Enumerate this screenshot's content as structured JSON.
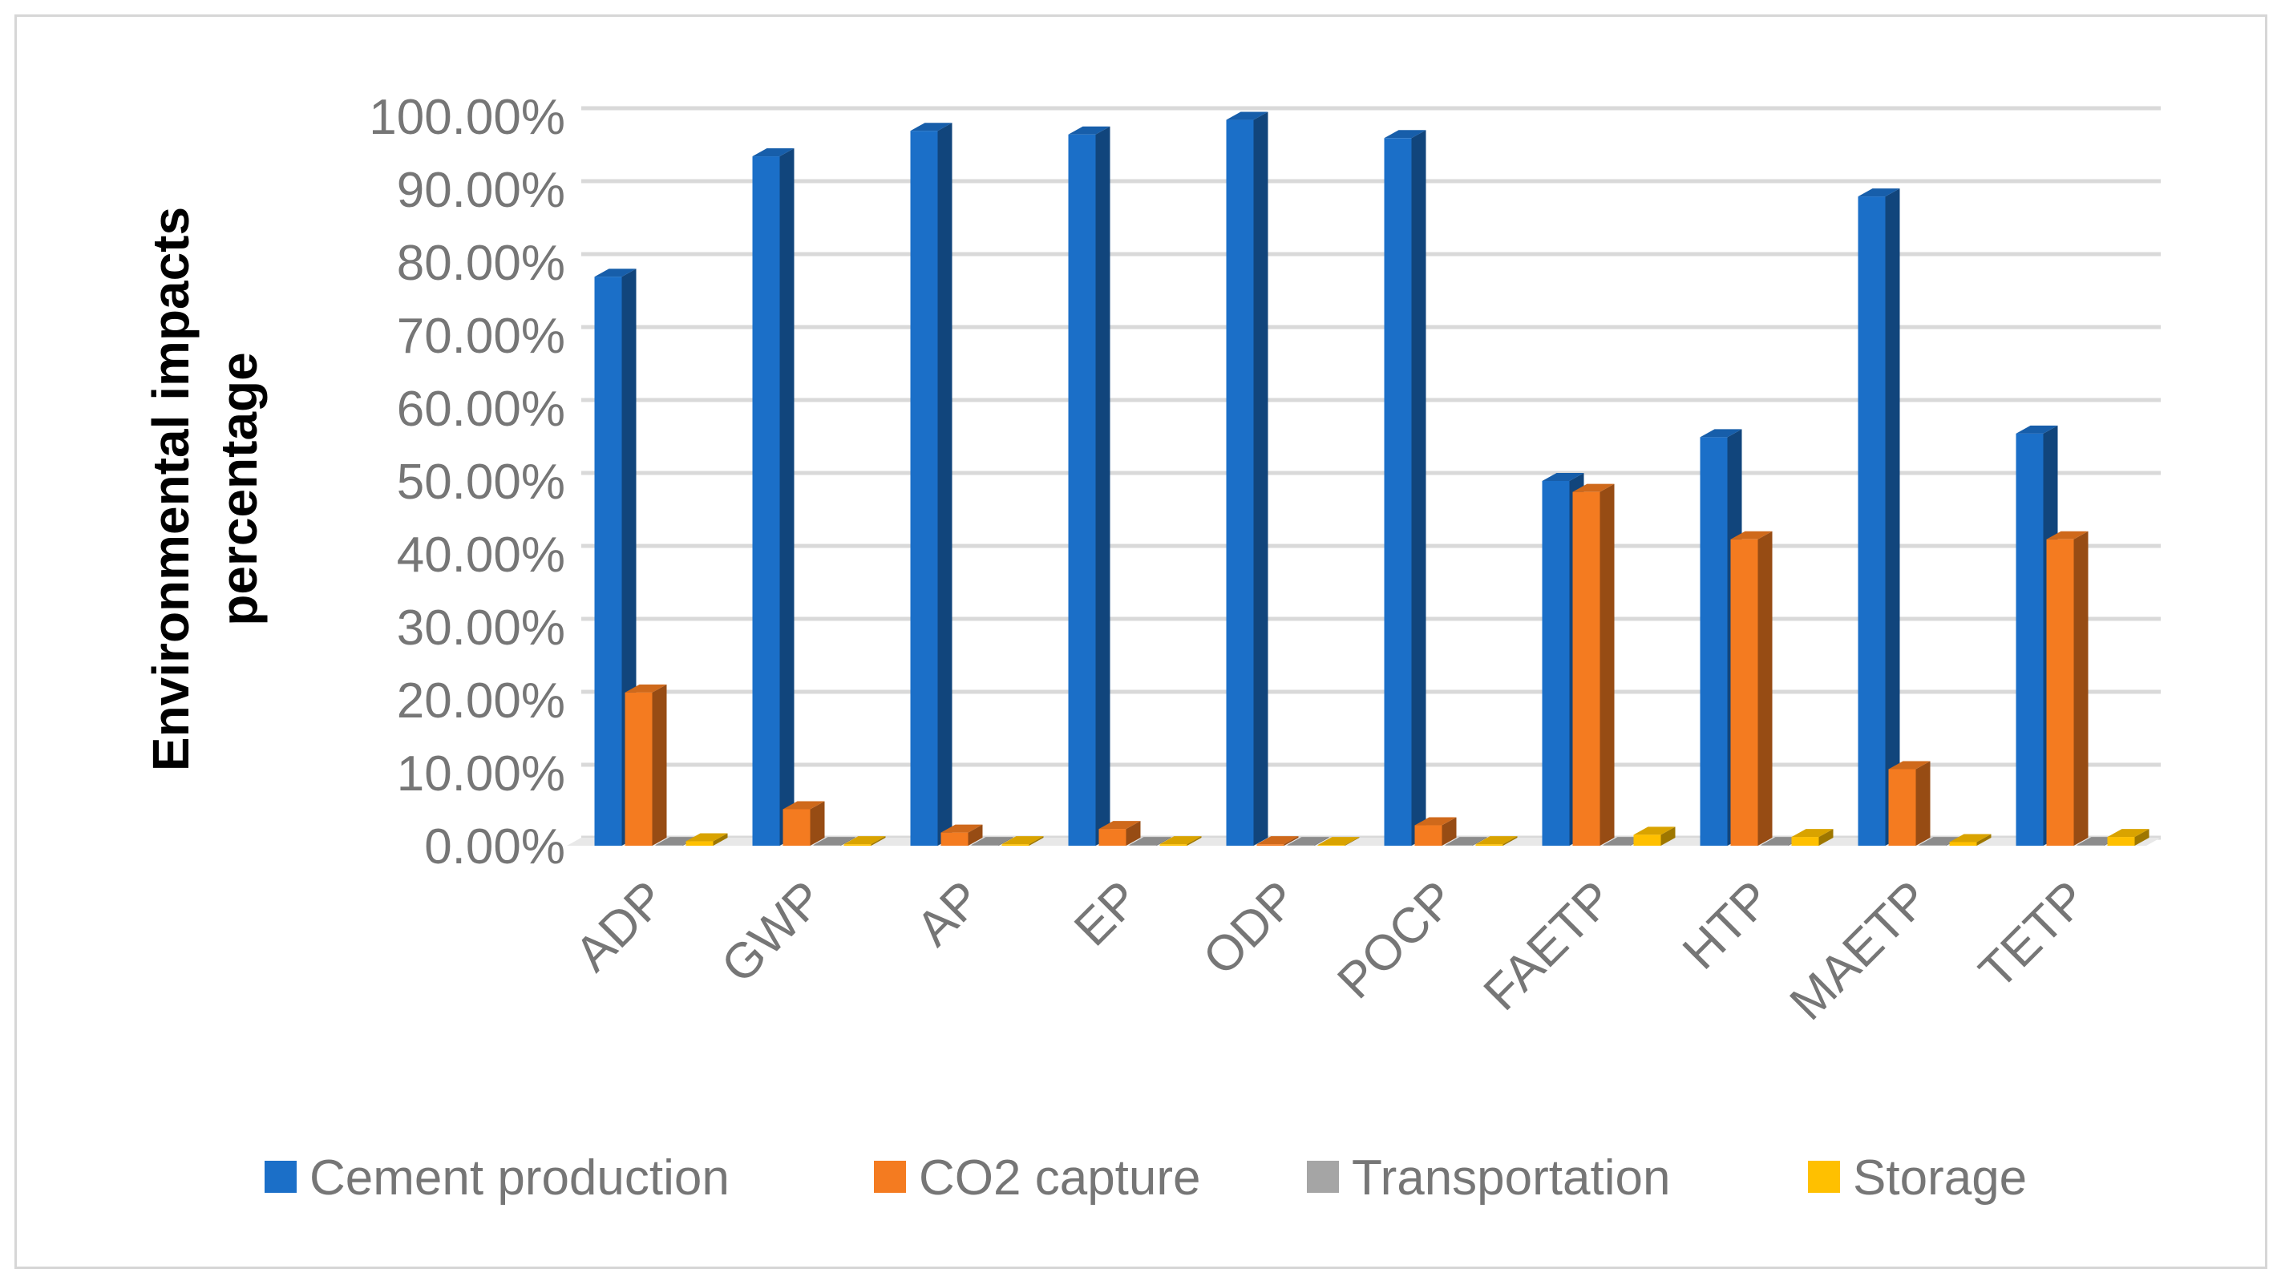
{
  "chart_data": {
    "type": "bar",
    "title": "",
    "xlabel": "",
    "ylabel_lines": [
      "Environmental impacts",
      "percentage"
    ],
    "ylim": [
      0,
      1.0
    ],
    "ytick_values": [
      0,
      0.1,
      0.2,
      0.3,
      0.4,
      0.5,
      0.6,
      0.7,
      0.8,
      0.9,
      1.0
    ],
    "ytick_labels": [
      "0.00%",
      "10.00%",
      "20.00%",
      "30.00%",
      "40.00%",
      "50.00%",
      "60.00%",
      "70.00%",
      "80.00%",
      "90.00%",
      "100.00%"
    ],
    "grid": true,
    "legend_position": "bottom",
    "categories": [
      "ADP",
      "GWP",
      "AP",
      "EP",
      "ODP",
      "POCP",
      "FAETP",
      "HTP",
      "MAETP",
      "TETP"
    ],
    "series": [
      {
        "name": "Cement production",
        "color": "#1b6fc8",
        "values": [
          0.78,
          0.945,
          0.98,
          0.975,
          0.995,
          0.97,
          0.5,
          0.56,
          0.89,
          0.565
        ]
      },
      {
        "name": "CO2 capture",
        "color": "#f47b20",
        "values": [
          0.21,
          0.05,
          0.018,
          0.023,
          0.002,
          0.028,
          0.485,
          0.42,
          0.105,
          0.42
        ]
      },
      {
        "name": "Transportation",
        "color": "#a5a5a5",
        "values": [
          0.001,
          0.001,
          0.001,
          0.001,
          0.001,
          0.001,
          0.001,
          0.001,
          0.001,
          0.001
        ]
      },
      {
        "name": "Storage",
        "color": "#ffc000",
        "values": [
          0.006,
          0.002,
          0.002,
          0.002,
          0.001,
          0.002,
          0.015,
          0.012,
          0.005,
          0.012
        ]
      }
    ]
  }
}
